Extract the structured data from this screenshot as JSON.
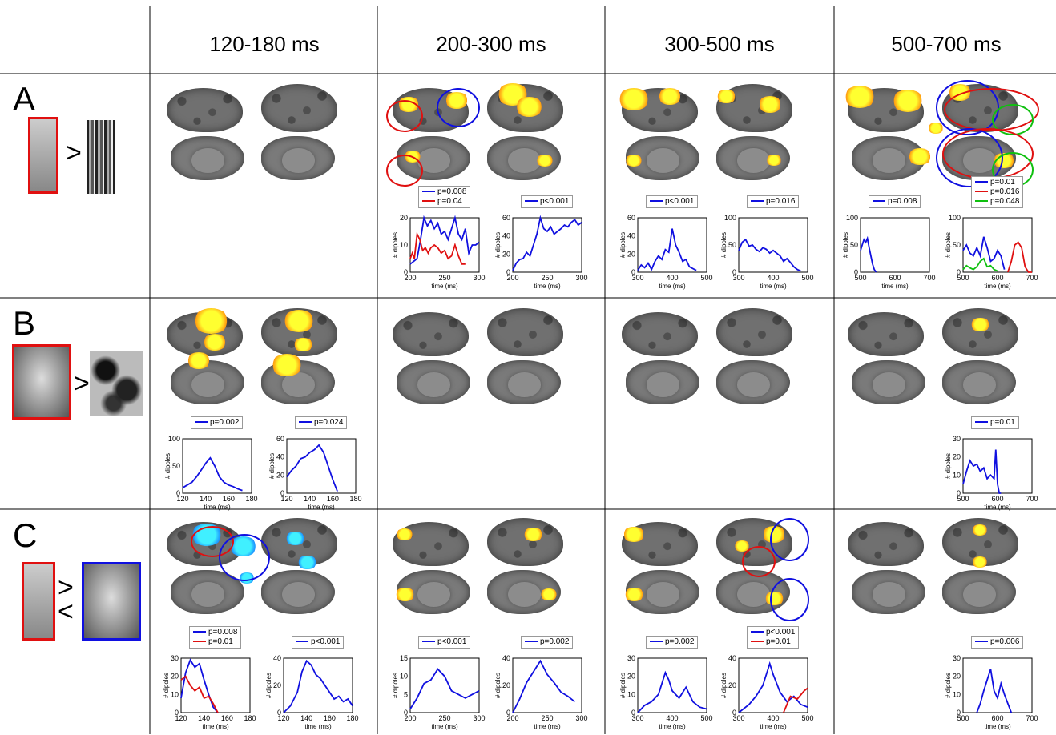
{
  "headers": [
    "120-180 ms",
    "200-300 ms",
    "300-500 ms",
    "500-700 ms"
  ],
  "row_labels": [
    "A",
    "B",
    "C"
  ],
  "comparison_symbols": {
    "A": ">",
    "B": ">",
    "C_top": ">",
    "C_bottom": "<"
  },
  "axis_text": {
    "ylabel": "# dipoles",
    "xlabel": "time (ms)"
  },
  "colors": {
    "blue": "#1010e0",
    "red": "#e01010",
    "green": "#10c010",
    "activation_hot": "#ffff30",
    "activation_cool": "#30e0ff"
  },
  "chart_data": [
    {
      "id": "A-200",
      "type": "line",
      "legend": [
        "p=0.008",
        "p=0.04"
      ],
      "xlim": [
        200,
        300
      ],
      "ylim": [
        0,
        20
      ],
      "xticks": [
        200,
        250,
        300
      ],
      "yticks": [
        0,
        10,
        20
      ],
      "series": [
        {
          "name": "p=0.008",
          "color": "blue",
          "x": [
            200,
            205,
            210,
            215,
            220,
            225,
            230,
            235,
            240,
            245,
            250,
            255,
            260,
            265,
            270,
            275,
            280,
            285,
            290,
            295,
            300
          ],
          "y": [
            3,
            4,
            5,
            12,
            20,
            17,
            19,
            16,
            18,
            14,
            15,
            12,
            16,
            20,
            14,
            12,
            16,
            7,
            10,
            10,
            11
          ]
        },
        {
          "name": "p=0.04",
          "color": "red",
          "x": [
            200,
            203,
            206,
            210,
            214,
            218,
            222,
            226,
            230,
            235,
            240,
            245,
            250,
            255,
            260,
            265,
            270,
            275,
            280
          ],
          "y": [
            5,
            7,
            5,
            14,
            12,
            8,
            9,
            7,
            9,
            10,
            9,
            7,
            8,
            5,
            6,
            10,
            6,
            3,
            3
          ]
        }
      ]
    },
    {
      "id": "A-200b",
      "type": "line",
      "legend": [
        "p<0.001"
      ],
      "xlim": [
        200,
        300
      ],
      "ylim": [
        0,
        60
      ],
      "xticks": [
        200,
        250,
        300
      ],
      "yticks": [
        0,
        20,
        40,
        60
      ],
      "series": [
        {
          "name": "p<0.001",
          "color": "blue",
          "x": [
            200,
            205,
            210,
            215,
            220,
            225,
            230,
            235,
            240,
            245,
            250,
            255,
            260,
            265,
            270,
            275,
            280,
            285,
            290,
            295,
            300
          ],
          "y": [
            2,
            10,
            14,
            15,
            22,
            18,
            30,
            42,
            60,
            48,
            45,
            50,
            42,
            45,
            48,
            52,
            50,
            55,
            58,
            52,
            55
          ]
        }
      ]
    },
    {
      "id": "A-300",
      "type": "line",
      "legend": [
        "p<0.001"
      ],
      "xlim": [
        300,
        500
      ],
      "ylim": [
        0,
        60
      ],
      "xticks": [
        300,
        400,
        500
      ],
      "yticks": [
        0,
        20,
        40,
        60
      ],
      "series": [
        {
          "name": "p<0.001",
          "color": "blue",
          "x": [
            300,
            310,
            320,
            330,
            340,
            350,
            360,
            370,
            380,
            390,
            400,
            410,
            420,
            430,
            440,
            450,
            460,
            470
          ],
          "y": [
            2,
            8,
            5,
            10,
            3,
            12,
            18,
            14,
            25,
            22,
            48,
            30,
            22,
            12,
            14,
            6,
            4,
            2
          ]
        }
      ]
    },
    {
      "id": "A-300b",
      "type": "line",
      "legend": [
        "p=0.016"
      ],
      "xlim": [
        300,
        500
      ],
      "ylim": [
        0,
        100
      ],
      "xticks": [
        300,
        400,
        500
      ],
      "yticks": [
        0,
        50,
        100
      ],
      "series": [
        {
          "name": "p=0.016",
          "color": "blue",
          "x": [
            300,
            310,
            320,
            330,
            340,
            350,
            360,
            370,
            380,
            390,
            400,
            410,
            420,
            430,
            440,
            450,
            460,
            470,
            480
          ],
          "y": [
            40,
            55,
            60,
            48,
            50,
            42,
            38,
            45,
            42,
            35,
            40,
            35,
            30,
            20,
            25,
            18,
            10,
            5,
            2
          ]
        }
      ]
    },
    {
      "id": "A-500",
      "type": "line",
      "legend": [
        "p=0.008"
      ],
      "xlim": [
        500,
        700
      ],
      "ylim": [
        0,
        100
      ],
      "xticks": [
        500,
        600,
        700
      ],
      "yticks": [
        0,
        50,
        100
      ],
      "series": [
        {
          "name": "p=0.008",
          "color": "blue",
          "x": [
            500,
            505,
            510,
            515,
            520,
            525,
            530,
            535,
            540,
            545
          ],
          "y": [
            40,
            50,
            60,
            55,
            62,
            45,
            30,
            15,
            5,
            0
          ]
        }
      ]
    },
    {
      "id": "A-500b",
      "type": "line",
      "legend": [
        "p=0.01",
        "p=0.016",
        "p=0.048"
      ],
      "xlim": [
        500,
        700
      ],
      "ylim": [
        0,
        100
      ],
      "xticks": [
        500,
        600,
        700
      ],
      "yticks": [
        0,
        50,
        100
      ],
      "series": [
        {
          "name": "p=0.01",
          "color": "blue",
          "x": [
            500,
            510,
            520,
            530,
            540,
            550,
            560,
            570,
            580,
            590,
            600,
            610,
            620
          ],
          "y": [
            40,
            50,
            35,
            30,
            45,
            30,
            65,
            45,
            20,
            25,
            40,
            30,
            5
          ]
        },
        {
          "name": "p=0.016",
          "color": "red",
          "x": [
            630,
            640,
            650,
            660,
            670,
            680,
            690,
            700
          ],
          "y": [
            0,
            20,
            50,
            55,
            45,
            10,
            0,
            0
          ]
        },
        {
          "name": "p=0.048",
          "color": "green",
          "x": [
            500,
            510,
            520,
            530,
            540,
            550,
            560,
            570,
            580,
            590,
            600
          ],
          "y": [
            5,
            12,
            8,
            5,
            10,
            20,
            25,
            10,
            12,
            5,
            2
          ]
        }
      ]
    },
    {
      "id": "B-120",
      "type": "line",
      "legend": [
        "p=0.002"
      ],
      "xlim": [
        120,
        180
      ],
      "ylim": [
        0,
        100
      ],
      "xticks": [
        120,
        140,
        160,
        180
      ],
      "yticks": [
        0,
        50,
        100
      ],
      "series": [
        {
          "name": "p=0.002",
          "color": "blue",
          "x": [
            120,
            124,
            128,
            132,
            136,
            140,
            144,
            148,
            152,
            156,
            160,
            164,
            168,
            172
          ],
          "y": [
            10,
            15,
            20,
            30,
            42,
            55,
            65,
            50,
            30,
            20,
            15,
            12,
            8,
            5
          ]
        }
      ]
    },
    {
      "id": "B-120b",
      "type": "line",
      "legend": [
        "p=0.024"
      ],
      "xlim": [
        120,
        180
      ],
      "ylim": [
        0,
        60
      ],
      "xticks": [
        120,
        140,
        160,
        180
      ],
      "yticks": [
        0,
        20,
        40,
        60
      ],
      "series": [
        {
          "name": "p=0.024",
          "color": "blue",
          "x": [
            120,
            124,
            128,
            132,
            136,
            140,
            144,
            148,
            152,
            156,
            160,
            164
          ],
          "y": [
            18,
            25,
            30,
            38,
            40,
            45,
            48,
            53,
            45,
            30,
            15,
            2
          ]
        }
      ]
    },
    {
      "id": "B-500",
      "type": "line",
      "legend": [
        "p=0.01"
      ],
      "xlim": [
        500,
        700
      ],
      "ylim": [
        0,
        30
      ],
      "xticks": [
        500,
        600,
        700
      ],
      "yticks": [
        0,
        10,
        20,
        30
      ],
      "series": [
        {
          "name": "p=0.01",
          "color": "blue",
          "x": [
            500,
            510,
            520,
            530,
            540,
            550,
            560,
            570,
            580,
            590,
            595,
            600,
            605,
            610
          ],
          "y": [
            5,
            12,
            18,
            15,
            16,
            12,
            14,
            8,
            10,
            8,
            24,
            5,
            0,
            0
          ]
        }
      ]
    },
    {
      "id": "C-120",
      "type": "line",
      "legend": [
        "p=0.008",
        "p=0.01"
      ],
      "xlim": [
        120,
        180
      ],
      "ylim": [
        0,
        30
      ],
      "xticks": [
        120,
        140,
        160,
        180
      ],
      "yticks": [
        0,
        10,
        20,
        30
      ],
      "series": [
        {
          "name": "p=0.008",
          "color": "blue",
          "x": [
            120,
            124,
            128,
            132,
            136,
            140,
            144,
            148,
            152
          ],
          "y": [
            8,
            22,
            29,
            25,
            27,
            18,
            10,
            3,
            0
          ]
        },
        {
          "name": "p=0.01",
          "color": "red",
          "x": [
            120,
            124,
            128,
            132,
            136,
            140,
            144,
            148,
            152
          ],
          "y": [
            18,
            20,
            15,
            12,
            14,
            8,
            9,
            5,
            0
          ]
        }
      ]
    },
    {
      "id": "C-120b",
      "type": "line",
      "legend": [
        "p<0.001"
      ],
      "xlim": [
        120,
        180
      ],
      "ylim": [
        0,
        40
      ],
      "xticks": [
        120,
        140,
        160,
        180
      ],
      "yticks": [
        0,
        20,
        40
      ],
      "series": [
        {
          "name": "p<0.001",
          "color": "blue",
          "x": [
            120,
            126,
            132,
            136,
            140,
            144,
            148,
            152,
            156,
            160,
            164,
            168,
            172,
            176,
            180
          ],
          "y": [
            0,
            5,
            15,
            30,
            38,
            35,
            28,
            25,
            20,
            15,
            10,
            12,
            8,
            10,
            5
          ]
        }
      ]
    },
    {
      "id": "C-200",
      "type": "line",
      "legend": [
        "p<0.001"
      ],
      "xlim": [
        200,
        300
      ],
      "ylim": [
        0,
        15
      ],
      "xticks": [
        200,
        250,
        300
      ],
      "yticks": [
        0,
        5,
        10,
        15
      ],
      "series": [
        {
          "name": "p<0.001",
          "color": "blue",
          "x": [
            200,
            210,
            220,
            230,
            240,
            250,
            260,
            270,
            280,
            290,
            300
          ],
          "y": [
            1,
            4,
            8,
            9,
            12,
            10,
            6,
            5,
            4,
            5,
            6
          ]
        }
      ]
    },
    {
      "id": "C-200b",
      "type": "line",
      "legend": [
        "p=0.002"
      ],
      "xlim": [
        200,
        300
      ],
      "ylim": [
        0,
        40
      ],
      "xticks": [
        200,
        250,
        300
      ],
      "yticks": [
        0,
        20,
        40
      ],
      "series": [
        {
          "name": "p=0.002",
          "color": "blue",
          "x": [
            200,
            210,
            220,
            230,
            240,
            250,
            260,
            270,
            280,
            290
          ],
          "y": [
            0,
            10,
            22,
            30,
            38,
            28,
            22,
            15,
            12,
            8
          ]
        }
      ]
    },
    {
      "id": "C-300",
      "type": "line",
      "legend": [
        "p=0.002"
      ],
      "xlim": [
        300,
        500
      ],
      "ylim": [
        0,
        30
      ],
      "xticks": [
        300,
        400,
        500
      ],
      "yticks": [
        0,
        10,
        20,
        30
      ],
      "series": [
        {
          "name": "p=0.002",
          "color": "blue",
          "x": [
            300,
            320,
            340,
            360,
            380,
            390,
            400,
            420,
            440,
            460,
            480,
            500
          ],
          "y": [
            0,
            4,
            6,
            10,
            22,
            18,
            12,
            8,
            14,
            6,
            3,
            2
          ]
        }
      ]
    },
    {
      "id": "C-300b",
      "type": "line",
      "legend": [
        "p<0.001",
        "p=0.01"
      ],
      "xlim": [
        300,
        500
      ],
      "ylim": [
        0,
        40
      ],
      "xticks": [
        300,
        400,
        500
      ],
      "yticks": [
        0,
        20,
        40
      ],
      "series": [
        {
          "name": "p<0.001",
          "color": "blue",
          "x": [
            300,
            330,
            350,
            370,
            390,
            400,
            420,
            440,
            460,
            480,
            500
          ],
          "y": [
            0,
            6,
            12,
            20,
            36,
            28,
            15,
            8,
            12,
            6,
            4
          ]
        },
        {
          "name": "p=0.01",
          "color": "red",
          "x": [
            430,
            450,
            470,
            490,
            500
          ],
          "y": [
            0,
            12,
            10,
            16,
            18
          ]
        }
      ]
    },
    {
      "id": "C-500",
      "type": "line",
      "legend": [
        "p=0.006"
      ],
      "xlim": [
        500,
        700
      ],
      "ylim": [
        0,
        30
      ],
      "xticks": [
        500,
        600,
        700
      ],
      "yticks": [
        0,
        10,
        20,
        30
      ],
      "series": [
        {
          "name": "p=0.006",
          "color": "blue",
          "x": [
            540,
            550,
            560,
            570,
            580,
            590,
            600,
            610,
            620,
            630,
            640
          ],
          "y": [
            0,
            5,
            12,
            18,
            24,
            12,
            8,
            16,
            10,
            5,
            0
          ]
        }
      ]
    }
  ]
}
